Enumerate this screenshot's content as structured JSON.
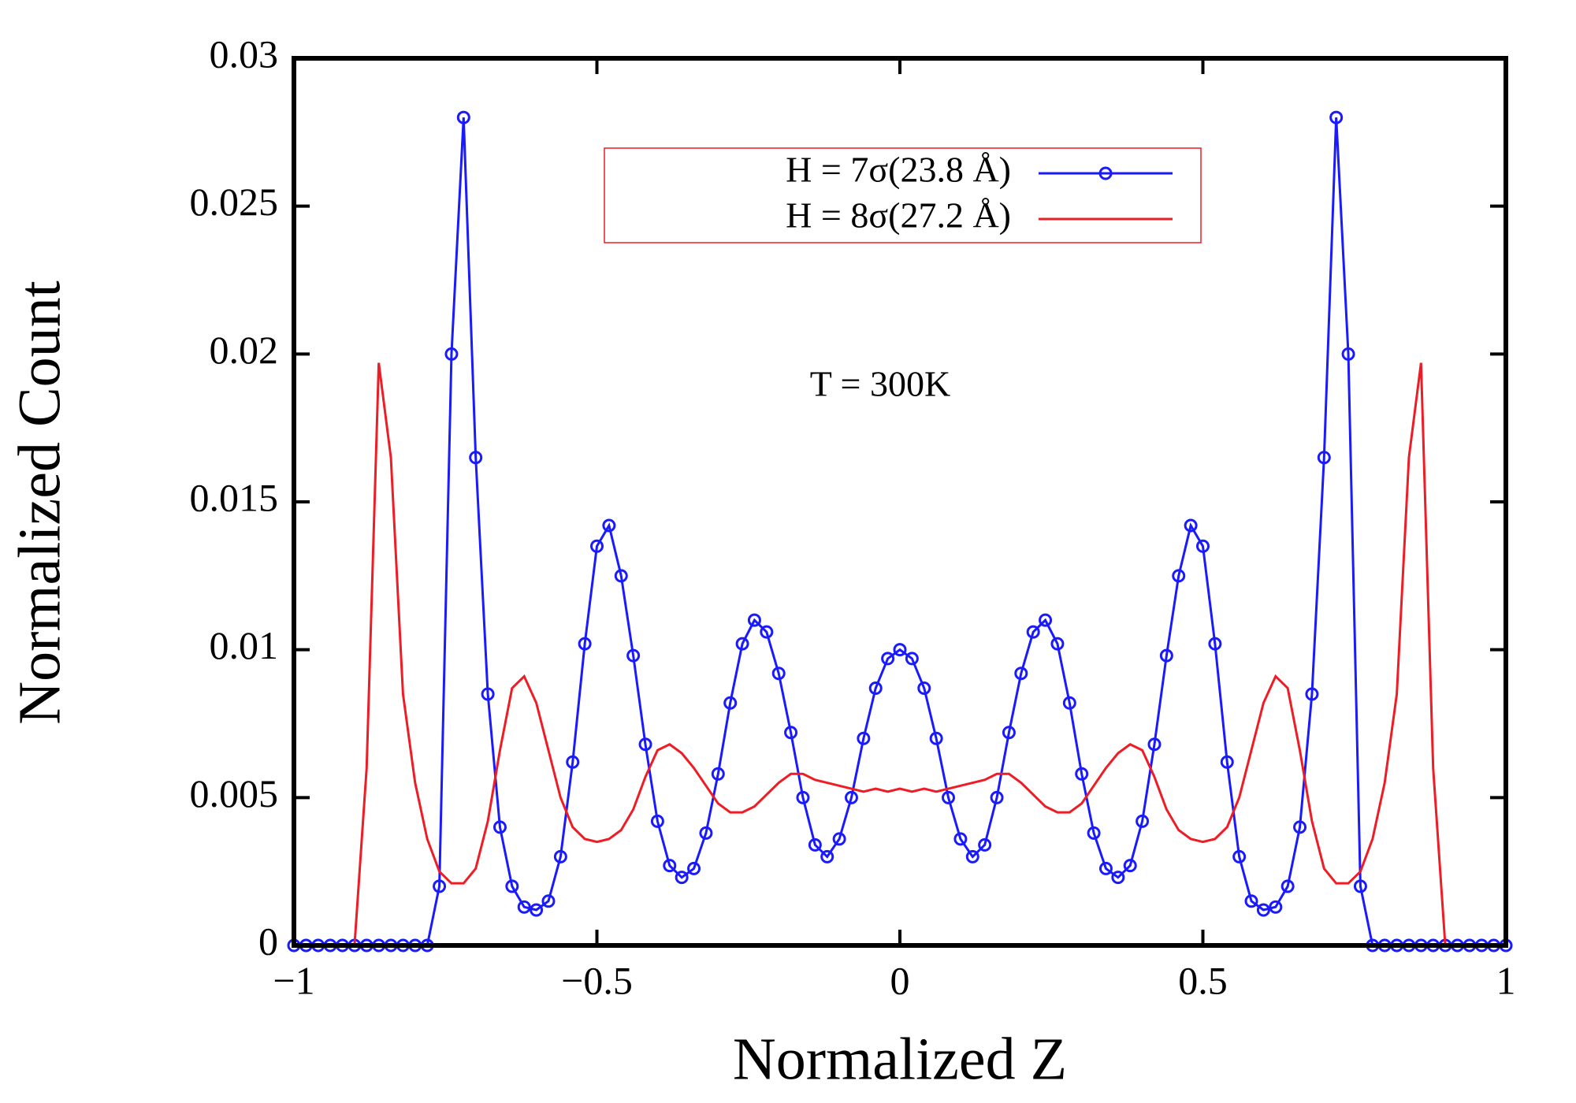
{
  "chart_data": {
    "type": "line",
    "xlabel": "Normalized Z",
    "ylabel": "Normalized Count",
    "annotation": "T = 300K",
    "xlim": [
      -1,
      1
    ],
    "ylim": [
      0,
      0.03
    ],
    "xticks": [
      {
        "value": -1,
        "label": "−1"
      },
      {
        "value": -0.5,
        "label": "−0.5"
      },
      0,
      0.5,
      1
    ],
    "yticks": [
      0,
      0.005,
      0.01,
      0.015,
      0.02,
      0.025,
      0.03
    ],
    "x": [
      -1,
      -0.98,
      -0.96,
      -0.94,
      -0.92,
      -0.9,
      -0.88,
      -0.86,
      -0.84,
      -0.82,
      -0.8,
      -0.78,
      -0.76,
      -0.74,
      -0.72,
      -0.7,
      -0.68,
      -0.66,
      -0.64,
      -0.62,
      -0.6,
      -0.58,
      -0.56,
      -0.54,
      -0.52,
      -0.5,
      -0.48,
      -0.46,
      -0.44,
      -0.42,
      -0.4,
      -0.38,
      -0.36,
      -0.34,
      -0.32,
      -0.3,
      -0.28,
      -0.26,
      -0.24,
      -0.22,
      -0.2,
      -0.18,
      -0.16,
      -0.14,
      -0.12,
      -0.1,
      -0.08,
      -0.06,
      -0.04,
      -0.02,
      0,
      0.02,
      0.04,
      0.06,
      0.08,
      0.1,
      0.12,
      0.14,
      0.16,
      0.18,
      0.2,
      0.22,
      0.24,
      0.26,
      0.28,
      0.3,
      0.32,
      0.34,
      0.36,
      0.38,
      0.4,
      0.42,
      0.44,
      0.46,
      0.48,
      0.5,
      0.52,
      0.54,
      0.56,
      0.58,
      0.6,
      0.62,
      0.64,
      0.66,
      0.68,
      0.7,
      0.72,
      0.74,
      0.76,
      0.78,
      0.8,
      0.82,
      0.84,
      0.86,
      0.88,
      0.9,
      0.92,
      0.94,
      0.96,
      0.98,
      1
    ],
    "series": [
      {
        "name": "H = 7σ(23.8 Å)",
        "color": "#1a1aff",
        "marker": "circle",
        "values": [
          0,
          0,
          0,
          0,
          0,
          0,
          0,
          0,
          0,
          0,
          0,
          0,
          0.002,
          0.02,
          0.028,
          0.0165,
          0.0085,
          0.004,
          0.002,
          0.0013,
          0.0012,
          0.0015,
          0.003,
          0.0062,
          0.0102,
          0.0135,
          0.0142,
          0.0125,
          0.0098,
          0.0068,
          0.0042,
          0.0027,
          0.0023,
          0.0026,
          0.0038,
          0.0058,
          0.0082,
          0.0102,
          0.011,
          0.0106,
          0.0092,
          0.0072,
          0.005,
          0.0034,
          0.003,
          0.0036,
          0.005,
          0.007,
          0.0087,
          0.0097,
          0.01,
          0.0097,
          0.0087,
          0.007,
          0.005,
          0.0036,
          0.003,
          0.0034,
          0.005,
          0.0072,
          0.0092,
          0.0106,
          0.011,
          0.0102,
          0.0082,
          0.0058,
          0.0038,
          0.0026,
          0.0023,
          0.0027,
          0.0042,
          0.0068,
          0.0098,
          0.0125,
          0.0142,
          0.0135,
          0.0102,
          0.0062,
          0.003,
          0.0015,
          0.0012,
          0.0013,
          0.002,
          0.004,
          0.0085,
          0.0165,
          0.028,
          0.02,
          0.002,
          0,
          0,
          0,
          0,
          0,
          0,
          0,
          0,
          0,
          0,
          0,
          0
        ]
      },
      {
        "name": "H = 8σ(27.2 Å)",
        "color": "#ee1c25",
        "values": [
          0,
          0,
          0,
          0,
          0,
          0,
          0.006,
          0.0197,
          0.0165,
          0.0085,
          0.0055,
          0.0036,
          0.0025,
          0.0021,
          0.0021,
          0.0026,
          0.0042,
          0.0066,
          0.0087,
          0.0091,
          0.0082,
          0.0066,
          0.005,
          0.004,
          0.0036,
          0.0035,
          0.0036,
          0.0039,
          0.0046,
          0.0057,
          0.0066,
          0.0068,
          0.0065,
          0.006,
          0.0054,
          0.0048,
          0.0045,
          0.0045,
          0.0047,
          0.0051,
          0.0055,
          0.0058,
          0.0058,
          0.0056,
          0.0055,
          0.0054,
          0.0053,
          0.0052,
          0.0053,
          0.0052,
          0.0053,
          0.0052,
          0.0053,
          0.0052,
          0.0053,
          0.0054,
          0.0055,
          0.0056,
          0.0058,
          0.0058,
          0.0055,
          0.0051,
          0.0047,
          0.0045,
          0.0045,
          0.0048,
          0.0054,
          0.006,
          0.0065,
          0.0068,
          0.0066,
          0.0057,
          0.0046,
          0.0039,
          0.0036,
          0.0035,
          0.0036,
          0.004,
          0.005,
          0.0066,
          0.0082,
          0.0091,
          0.0087,
          0.0066,
          0.0042,
          0.0026,
          0.0021,
          0.0021,
          0.0025,
          0.0036,
          0.0055,
          0.0085,
          0.0165,
          0.0197,
          0.006,
          0,
          0,
          0,
          0,
          0,
          0
        ]
      }
    ]
  }
}
